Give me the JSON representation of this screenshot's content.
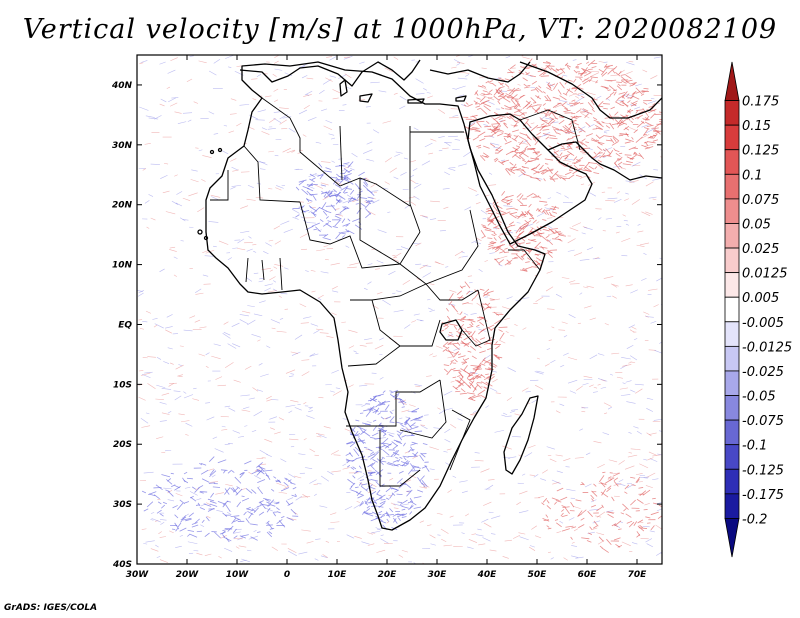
{
  "title": "Vertical velocity [m/s] at 1000hPa, VT: 2020082109",
  "footer": "GrADS: IGES/COLA",
  "map": {
    "lon_range": [
      -30,
      75
    ],
    "lat_range": [
      -40,
      45
    ],
    "lon_ticks": [
      "30W",
      "20W",
      "10W",
      "0",
      "10E",
      "20E",
      "30E",
      "40E",
      "50E",
      "60E",
      "70E"
    ],
    "lat_ticks": [
      "40N",
      "30N",
      "20N",
      "10N",
      "EQ",
      "10S",
      "20S",
      "30S",
      "40S"
    ]
  },
  "colorbar": {
    "levels": [
      "0.175",
      "0.15",
      "0.125",
      "0.1",
      "0.075",
      "0.05",
      "0.025",
      "0.0125",
      "0.005",
      "-0.005",
      "-0.0125",
      "-0.025",
      "-0.05",
      "-0.075",
      "-0.1",
      "-0.125",
      "-0.175",
      "-0.2"
    ],
    "colors": [
      "#a01818",
      "#c42a2a",
      "#d83c3c",
      "#e25656",
      "#e87070",
      "#ee8e8e",
      "#f3aeae",
      "#f8cccc",
      "#fce8e8",
      "#ffffff",
      "#e4e4fb",
      "#c8c8f4",
      "#a8a8ea",
      "#8888df",
      "#6868d3",
      "#4848c6",
      "#2e2eb6",
      "#1a1aa0",
      "#0a0a80"
    ]
  },
  "colors": {
    "positive": "#e06060",
    "negative": "#6a6ae0",
    "coast": "#000000"
  }
}
